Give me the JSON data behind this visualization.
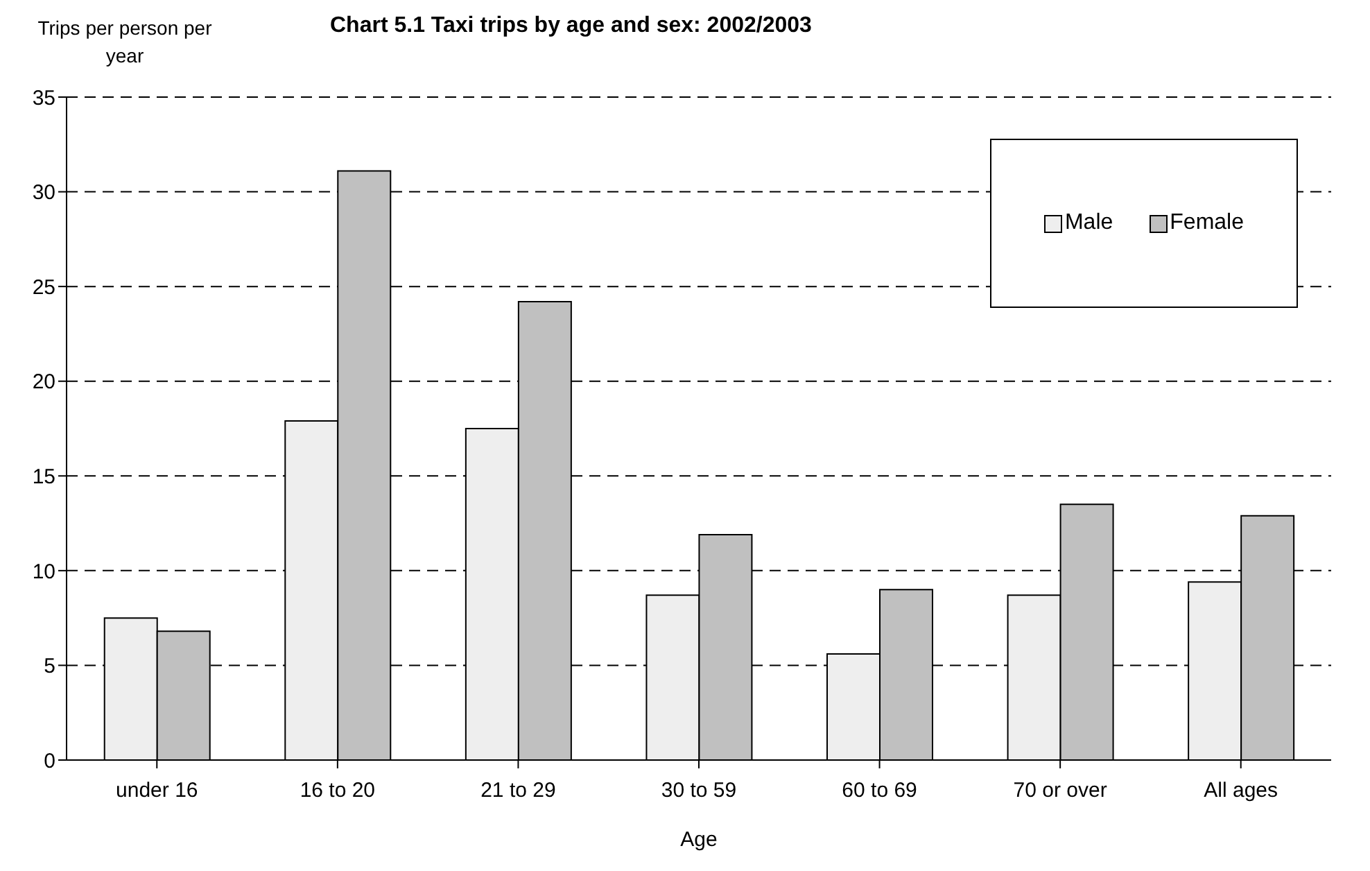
{
  "chart_data": {
    "type": "bar",
    "title": "Chart 5.1 Taxi trips by age and sex: 2002/2003",
    "ylabel": "Trips per person per year",
    "xlabel": "Age",
    "categories": [
      "under 16",
      "16 to 20",
      "21 to 29",
      "30 to 59",
      "60 to 69",
      "70 or over",
      "All ages"
    ],
    "series": [
      {
        "name": "Male",
        "color": "#eeeeee",
        "values": [
          7.5,
          17.9,
          17.5,
          8.7,
          5.6,
          8.7,
          9.4
        ]
      },
      {
        "name": "Female",
        "color": "#c0c0c0",
        "values": [
          6.8,
          31.1,
          24.2,
          11.9,
          9.0,
          13.5,
          12.9
        ]
      }
    ],
    "ylim": [
      0,
      35
    ],
    "yticks": [
      0,
      5,
      10,
      15,
      20,
      25,
      30,
      35
    ],
    "grid": "y",
    "legend": "top right"
  }
}
